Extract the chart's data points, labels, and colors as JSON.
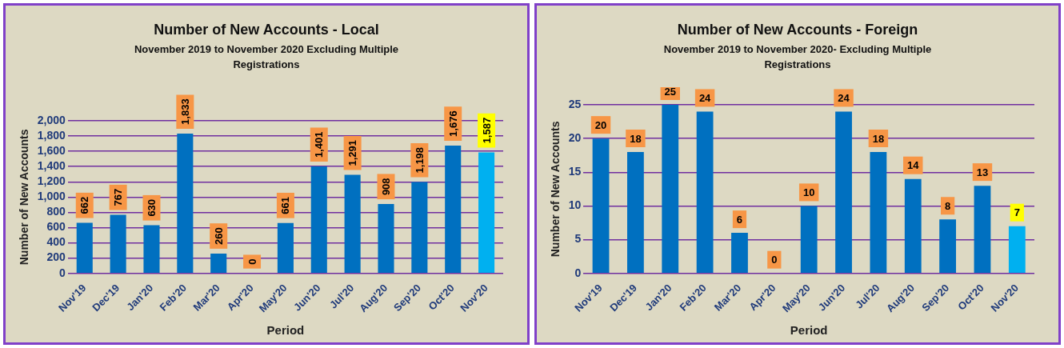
{
  "chart_data": [
    {
      "type": "bar",
      "title": "Number of New Accounts - Local",
      "subtitle": "November 2019 to November 2020 Excluding Multiple Registrations",
      "xlabel": "Period",
      "ylabel": "Number of New Accounts",
      "categories": [
        "Nov'19",
        "Dec'19",
        "Jan'20",
        "Feb'20",
        "Mar'20",
        "Apr'20",
        "May'20",
        "Jun'20",
        "Jul'20",
        "Aug'20",
        "Sep'20",
        "Oct'20",
        "Nov'20"
      ],
      "values": [
        662,
        767,
        630,
        1833,
        260,
        0,
        661,
        1401,
        1291,
        908,
        1198,
        1676,
        1587
      ],
      "colors": [
        "#0070c0",
        "#0070c0",
        "#0070c0",
        "#0070c0",
        "#0070c0",
        "#0070c0",
        "#0070c0",
        "#0070c0",
        "#0070c0",
        "#0070c0",
        "#0070c0",
        "#0070c0",
        "#00b0f0"
      ],
      "value_labels": [
        "662",
        "767",
        "630",
        "1,833",
        "260",
        "0",
        "661",
        "1,401",
        "1,291",
        "908",
        "1,198",
        "1,676",
        "1,587"
      ],
      "ylim": [
        0,
        2000
      ],
      "yticks": [
        0,
        200,
        400,
        600,
        800,
        {
          "value": 1000,
          "label": "1,000"
        },
        {
          "value": 1200,
          "label": "1,200"
        },
        {
          "value": 1400,
          "label": "1,400"
        },
        {
          "value": 1600,
          "label": "1,600"
        },
        {
          "value": 1800,
          "label": "1,800"
        },
        {
          "value": 2000,
          "label": "2,000"
        }
      ],
      "grid": "y",
      "legend": false
    },
    {
      "type": "bar",
      "title": "Number of New Accounts - Foreign",
      "subtitle": "November 2019 to November 2020- Excluding Multiple Registrations",
      "xlabel": "Period",
      "ylabel": "Number of New Accounts",
      "categories": [
        "Nov'19",
        "Dec'19",
        "Jan'20",
        "Feb'20",
        "Mar'20",
        "Apr'20",
        "May'20",
        "Jun'20",
        "Jul'20",
        "Aug'20",
        "Sep'20",
        "Oct'20",
        "Nov'20"
      ],
      "values": [
        20,
        18,
        25,
        24,
        6,
        0,
        10,
        24,
        18,
        14,
        8,
        13,
        7
      ],
      "colors": [
        "#0070c0",
        "#0070c0",
        "#0070c0",
        "#0070c0",
        "#0070c0",
        "#0070c0",
        "#0070c0",
        "#0070c0",
        "#0070c0",
        "#0070c0",
        "#0070c0",
        "#0070c0",
        "#00b0f0"
      ],
      "data_labels": true,
      "ylim": [
        0,
        25
      ],
      "yticks": [
        0,
        5,
        10,
        15,
        20,
        25
      ],
      "grid": "y",
      "legend": false
    }
  ]
}
